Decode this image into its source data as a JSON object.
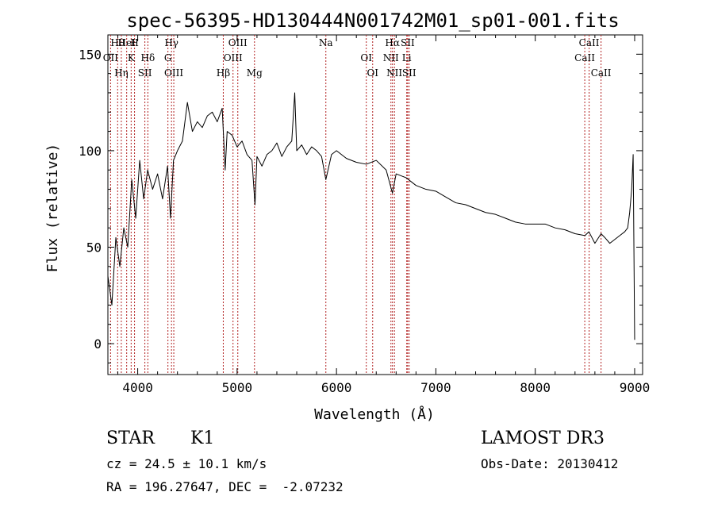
{
  "chart_data": {
    "type": "line",
    "title": "spec-56395-HD130444N001742M01_sp01-001.fits",
    "xlabel": "Wavelength (Å)",
    "ylabel": "Flux (relative)",
    "xlim": [
      3700,
      9080
    ],
    "ylim": [
      -16,
      160
    ],
    "xticks": [
      4000,
      5000,
      6000,
      7000,
      8000,
      9000
    ],
    "yticks": [
      0,
      50,
      100,
      150
    ],
    "grid": false,
    "series": [
      {
        "name": "spectrum",
        "x": [
          3700,
          3740,
          3780,
          3820,
          3860,
          3900,
          3940,
          3980,
          4020,
          4060,
          4100,
          4150,
          4200,
          4250,
          4300,
          4330,
          4360,
          4400,
          4450,
          4500,
          4550,
          4600,
          4650,
          4700,
          4750,
          4800,
          4850,
          4880,
          4900,
          4950,
          5000,
          5050,
          5100,
          5150,
          5180,
          5200,
          5250,
          5300,
          5350,
          5400,
          5450,
          5500,
          5550,
          5580,
          5600,
          5650,
          5700,
          5750,
          5800,
          5850,
          5893,
          5950,
          6000,
          6100,
          6200,
          6300,
          6400,
          6500,
          6563,
          6600,
          6700,
          6800,
          6900,
          7000,
          7100,
          7200,
          7300,
          7400,
          7500,
          7600,
          7700,
          7800,
          7900,
          8000,
          8100,
          8200,
          8300,
          8400,
          8500,
          8540,
          8600,
          8662,
          8700,
          8750,
          8800,
          8850,
          8900,
          8930,
          8950,
          8970,
          8985,
          9000
        ],
        "y": [
          35,
          20,
          55,
          40,
          60,
          50,
          85,
          65,
          95,
          75,
          90,
          80,
          88,
          75,
          92,
          65,
          95,
          100,
          105,
          125,
          110,
          115,
          112,
          118,
          120,
          115,
          122,
          90,
          110,
          108,
          102,
          105,
          98,
          95,
          72,
          97,
          92,
          98,
          100,
          104,
          97,
          102,
          105,
          130,
          100,
          103,
          98,
          102,
          100,
          97,
          85,
          98,
          100,
          96,
          94,
          93,
          95,
          90,
          78,
          88,
          86,
          82,
          80,
          79,
          76,
          73,
          72,
          70,
          68,
          67,
          65,
          63,
          62,
          62,
          62,
          60,
          59,
          57,
          56,
          58,
          52,
          57,
          55,
          52,
          54,
          56,
          58,
          60,
          68,
          80,
          98,
          2
        ]
      }
    ],
    "line_markers": [
      {
        "label": "Hθ",
        "wavelength": 3798
      },
      {
        "label": "OII",
        "wavelength": 3727
      },
      {
        "label": "Hη",
        "wavelength": 3835
      },
      {
        "label": "HeI",
        "wavelength": 3889
      },
      {
        "label": "K",
        "wavelength": 3934
      },
      {
        "label": "SII",
        "wavelength": 4072
      },
      {
        "label": "H",
        "wavelength": 3968
      },
      {
        "label": "Hδ",
        "wavelength": 4102
      },
      {
        "label": "OIII",
        "wavelength": 4363
      },
      {
        "label": "Hγ",
        "wavelength": 4340
      },
      {
        "label": "G",
        "wavelength": 4304
      },
      {
        "label": "Hβ",
        "wavelength": 4861
      },
      {
        "label": "OIII",
        "wavelength": 5007
      },
      {
        "label": "OIII",
        "wavelength": 4959
      },
      {
        "label": "Mg",
        "wavelength": 5175
      },
      {
        "label": "Na",
        "wavelength": 5893
      },
      {
        "label": "OI",
        "wavelength": 6300
      },
      {
        "label": "OI",
        "wavelength": 6364
      },
      {
        "label": "Hα",
        "wavelength": 6563
      },
      {
        "label": "NII",
        "wavelength": 6548
      },
      {
        "label": "NII",
        "wavelength": 6583
      },
      {
        "label": "SII",
        "wavelength": 6716
      },
      {
        "label": "Li",
        "wavelength": 6707
      },
      {
        "label": "SII",
        "wavelength": 6731
      },
      {
        "label": "CaII",
        "wavelength": 8542
      },
      {
        "label": "CaII",
        "wavelength": 8498
      },
      {
        "label": "CaII",
        "wavelength": 8662
      }
    ]
  },
  "footer": {
    "object_class": "STAR",
    "subclass": "K1",
    "redshift": "cz = 24.5 ± 10.1 km/s",
    "coords": "RA = 196.27647, DEC =  -2.07232",
    "survey": "LAMOST DR3",
    "obs_date": "Obs-Date: 20130412"
  },
  "colors": {
    "spectrum": "#000000",
    "markers": "#b22222",
    "background": "#ffffff"
  }
}
